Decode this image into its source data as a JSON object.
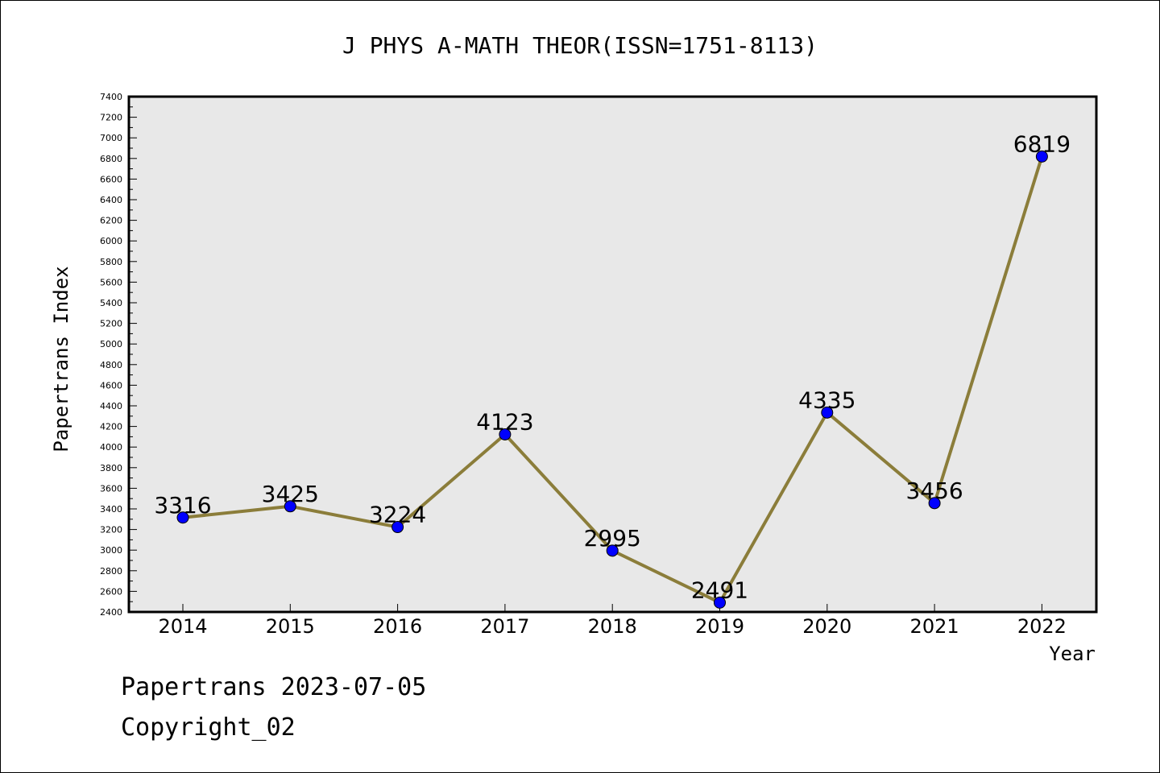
{
  "chart_data": {
    "type": "line",
    "title": "J PHYS A-MATH THEOR(ISSN=1751-8113)",
    "xlabel": "Year",
    "ylabel": "Papertrans Index",
    "categories": [
      "2014",
      "2015",
      "2016",
      "2017",
      "2018",
      "2019",
      "2020",
      "2021",
      "2022"
    ],
    "series": [
      {
        "values": [
          3316,
          3425,
          3224,
          4123,
          2995,
          2491,
          4335,
          3456,
          6819
        ],
        "line_color": "#8B7D3A",
        "marker_color": "#0000FF"
      }
    ],
    "data_labels": [
      "3316",
      "3425",
      "3224",
      "4123",
      "2995",
      "2491",
      "4335",
      "3456",
      "6819"
    ],
    "ylim": [
      2400,
      7400
    ],
    "yticks": [
      2400,
      2600,
      2800,
      3000,
      3200,
      3400,
      3600,
      3800,
      4000,
      4200,
      4400,
      4600,
      4800,
      5000,
      5200,
      5400,
      5600,
      5800,
      6000,
      6200,
      6400,
      6600,
      6800,
      7000,
      7200,
      7400
    ],
    "ytick_labels": [
      "2400",
      "2600",
      "2800",
      "3000",
      "3200",
      "3400",
      "3600",
      "3800",
      "4000",
      "4200",
      "4400",
      "4600",
      "4800",
      "5000",
      "5200",
      "5400",
      "5600",
      "5800",
      "6000",
      "6200",
      "6400",
      "6600",
      "6800",
      "7000",
      "7200",
      "7400"
    ],
    "grid": false,
    "plot_background": "#E8E8E8"
  },
  "footer": {
    "line1": "Papertrans 2023-07-05",
    "line2": "Copyright_02"
  }
}
